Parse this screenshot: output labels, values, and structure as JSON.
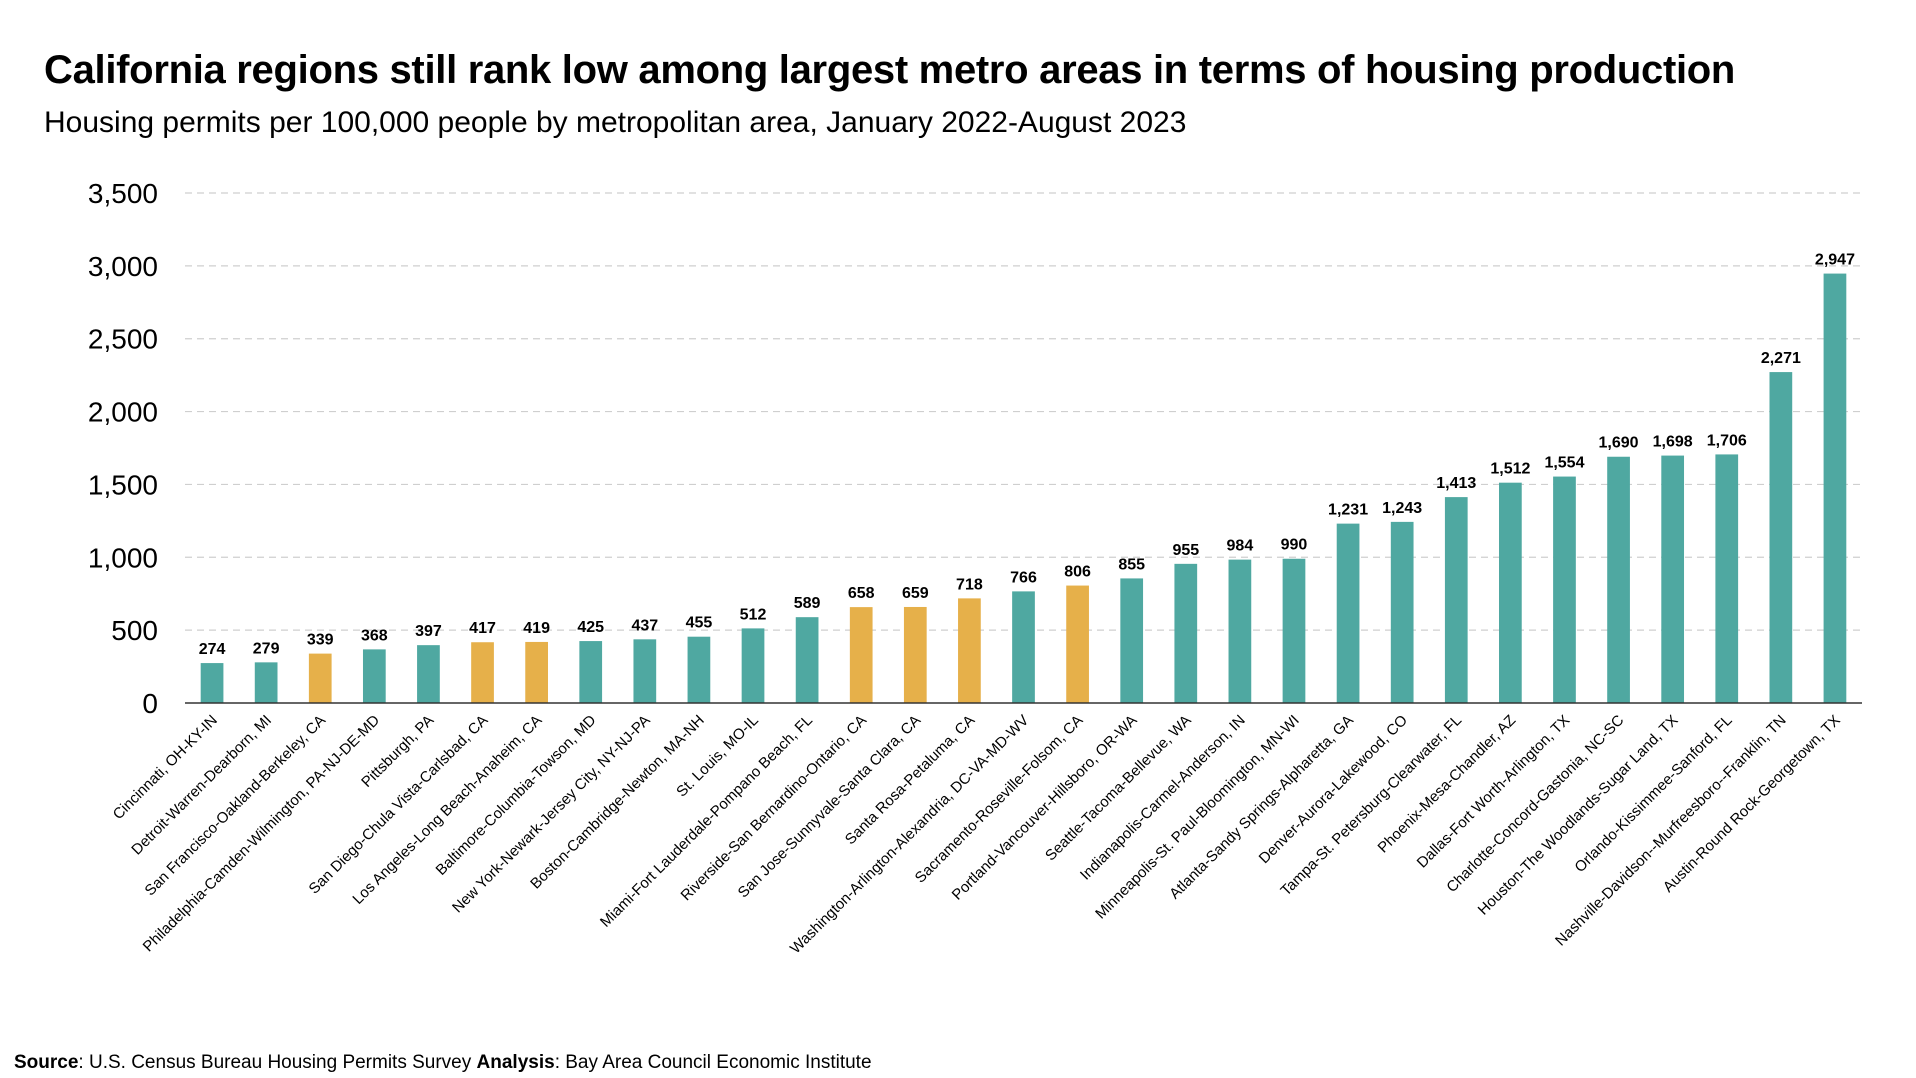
{
  "title": "California regions still rank low among largest metro areas in terms of housing production",
  "subtitle": "Housing permits per 100,000 people by metropolitan area, January 2022-August 2023",
  "source": {
    "source_label": "Source",
    "source_text": ": U.S. Census Bureau Housing Permits Survey ",
    "analysis_label": "Analysis",
    "analysis_text": ": Bay Area Council Economic Institute"
  },
  "colors": {
    "default_bar": "#4fa8a1",
    "california_bar": "#e6b04a",
    "gridline": "#cfcfcf",
    "axis": "#333333"
  },
  "chart_data": {
    "type": "bar",
    "title": "California regions still rank low among largest metro areas in terms of housing production",
    "xlabel": "",
    "ylabel": "",
    "ylim": [
      0,
      3500
    ],
    "yticks": [
      0,
      500,
      1000,
      1500,
      2000,
      2500,
      3000,
      3500
    ],
    "ytick_labels": [
      "0",
      "500",
      "1,000",
      "1,500",
      "2,000",
      "2,500",
      "3,000",
      "3,500"
    ],
    "grid": true,
    "categories": [
      "Cincinnati, OH-KY-IN",
      "Detroit-Warren-Dearborn, MI",
      "San Francisco-Oakland-Berkeley, CA",
      "Philadelphia-Camden-Wilmington, PA-NJ-DE-MD",
      "Pittsburgh, PA",
      "San Diego-Chula Vista-Carlsbad, CA",
      "Los Angeles-Long Beach-Anaheim, CA",
      "Baltimore-Columbia-Towson, MD",
      "New York-Newark-Jersey City, NY-NJ-PA",
      "Boston-Cambridge-Newton, MA-NH",
      "St. Louis, MO-IL",
      "Miami-Fort Lauderdale-Pompano Beach, FL",
      "Riverside-San Bernardino-Ontario, CA",
      "San Jose-Sunnyvale-Santa Clara, CA",
      "Santa Rosa-Petaluma, CA",
      "Washington-Arlington-Alexandria, DC-VA-MD-WV",
      "Sacramento-Roseville-Folsom, CA",
      "Portland-Vancouver-Hillsboro, OR-WA",
      "Seattle-Tacoma-Bellevue, WA",
      "Indianapolis-Carmel-Anderson, IN",
      "Minneapolis-St. Paul-Bloomington, MN-WI",
      "Atlanta-Sandy Springs-Alpharetta, GA",
      "Denver-Aurora-Lakewood, CO",
      "Tampa-St. Petersburg-Clearwater, FL",
      "Phoenix-Mesa-Chandler, AZ",
      "Dallas-Fort Worth-Arlington, TX",
      "Charlotte-Concord-Gastonia, NC-SC",
      "Houston-The Woodlands-Sugar Land, TX",
      "Orlando-Kissimmee-Sanford, FL",
      "Nashville-Davidson--Murfreesboro--Franklin, TN",
      "Austin-Round Rock-Georgetown, TX"
    ],
    "values": [
      274,
      279,
      339,
      368,
      397,
      417,
      419,
      425,
      437,
      455,
      512,
      589,
      658,
      659,
      718,
      766,
      806,
      855,
      955,
      984,
      990,
      1231,
      1243,
      1413,
      1512,
      1554,
      1690,
      1698,
      1706,
      2271,
      2947
    ],
    "value_labels": [
      "274",
      "279",
      "339",
      "368",
      "397",
      "417",
      "419",
      "425",
      "437",
      "455",
      "512",
      "589",
      "658",
      "659",
      "718",
      "766",
      "806",
      "855",
      "955",
      "984",
      "990",
      "1,231",
      "1,243",
      "1,413",
      "1,512",
      "1,554",
      "1,690",
      "1,698",
      "1,706",
      "2,271",
      "2,947"
    ],
    "highlight": [
      false,
      false,
      true,
      false,
      false,
      true,
      true,
      false,
      false,
      false,
      false,
      false,
      true,
      true,
      true,
      false,
      true,
      false,
      false,
      false,
      false,
      false,
      false,
      false,
      false,
      false,
      false,
      false,
      false,
      false,
      false
    ]
  }
}
